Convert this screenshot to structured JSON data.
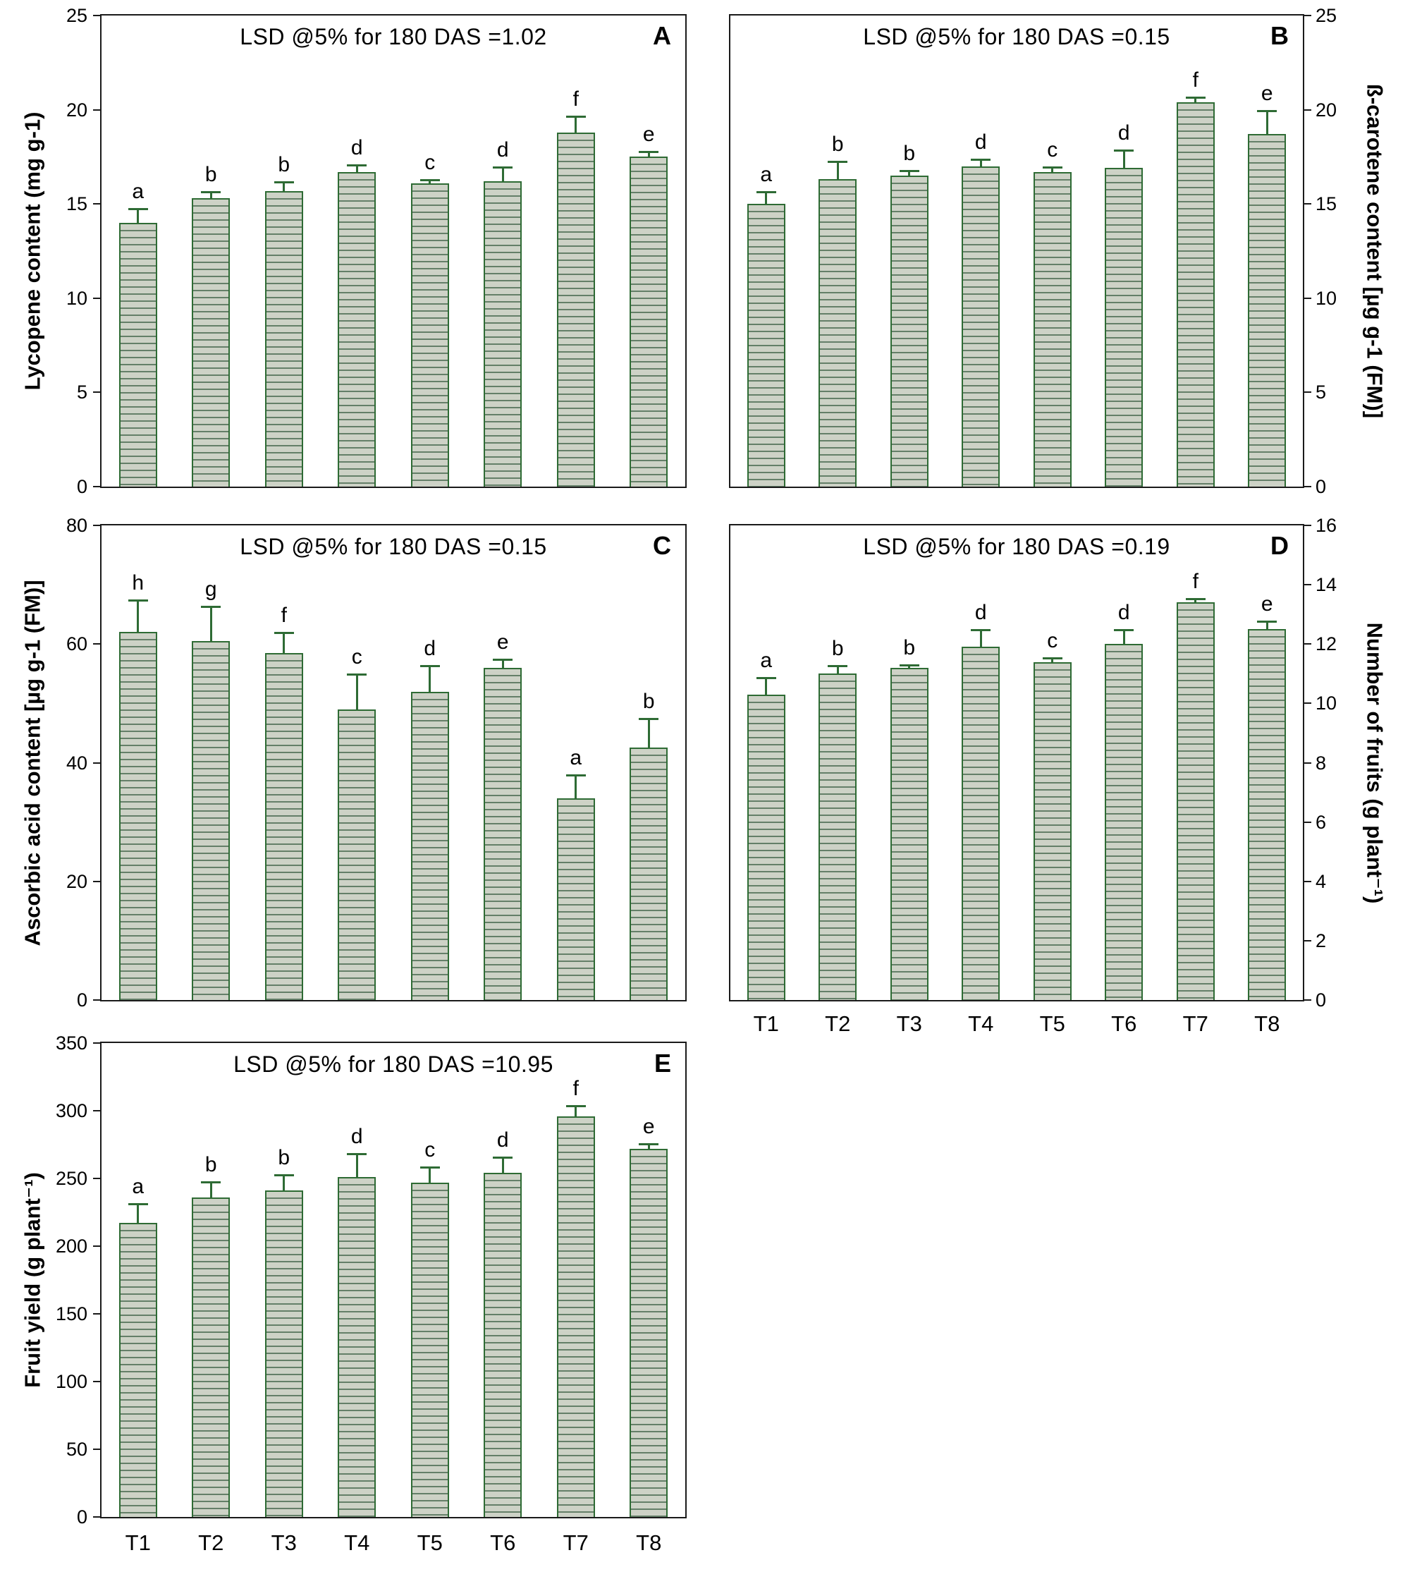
{
  "figure": {
    "background": "#ffffff",
    "axis_color": "#1a1a1a",
    "bar_fill": "#cdd2c6",
    "bar_stripe": "#647f68",
    "bar_border": "#2e6b34",
    "error_color": "#2e6b34",
    "text_color": "#000000"
  },
  "chart_data": [
    {
      "type": "bar",
      "panel": "A",
      "title": "LSD @5% for 180 DAS =1.02",
      "ylabel": "Lycopene content (mg g-1)",
      "xlabel": "",
      "axis_side": "left",
      "ylim": [
        0,
        25
      ],
      "yticks": [
        0,
        5,
        10,
        15,
        20,
        25
      ],
      "grid": false,
      "categories": [
        "T1",
        "T2",
        "T3",
        "T4",
        "T5",
        "T6",
        "T7",
        "T8"
      ],
      "show_x_labels": false,
      "values": [
        14.0,
        15.3,
        15.7,
        16.7,
        16.1,
        16.2,
        18.8,
        17.5
      ],
      "errors": [
        0.8,
        0.4,
        0.5,
        0.4,
        0.2,
        0.8,
        0.9,
        0.3
      ],
      "letters": [
        "a",
        "b",
        "b",
        "d",
        "c",
        "d",
        "f",
        "e"
      ]
    },
    {
      "type": "bar",
      "panel": "B",
      "title": "LSD @5% for 180 DAS =0.15",
      "ylabel": "ß-carotene content [µg g-1 (FM)]",
      "xlabel": "",
      "axis_side": "right",
      "ylim": [
        0,
        25
      ],
      "yticks": [
        0,
        5,
        10,
        15,
        20,
        25
      ],
      "grid": false,
      "categories": [
        "T1",
        "T2",
        "T3",
        "T4",
        "T5",
        "T6",
        "T7",
        "T8"
      ],
      "show_x_labels": false,
      "values": [
        15.0,
        16.3,
        16.5,
        17.0,
        16.7,
        16.9,
        20.4,
        18.7
      ],
      "errors": [
        0.7,
        1.0,
        0.3,
        0.4,
        0.3,
        1.0,
        0.3,
        1.3
      ],
      "letters": [
        "a",
        "b",
        "b",
        "d",
        "c",
        "d",
        "f",
        "e"
      ]
    },
    {
      "type": "bar",
      "panel": "C",
      "title": "LSD @5% for 180 DAS =0.15",
      "ylabel": "Ascorbic acid content [µg g-1 (FM)]",
      "xlabel": "",
      "axis_side": "left",
      "ylim": [
        0,
        80
      ],
      "yticks": [
        0,
        20,
        40,
        60,
        80
      ],
      "grid": false,
      "categories": [
        "T1",
        "T2",
        "T3",
        "T4",
        "T5",
        "T6",
        "T7",
        "T8"
      ],
      "show_x_labels": false,
      "values": [
        62.0,
        60.5,
        58.5,
        49.0,
        52.0,
        56.0,
        34.0,
        42.5
      ],
      "errors": [
        5.5,
        6.0,
        3.5,
        6.0,
        4.5,
        1.5,
        4.0,
        5.0
      ],
      "letters": [
        "h",
        "g",
        "f",
        "c",
        "d",
        "e",
        "a",
        "b"
      ]
    },
    {
      "type": "bar",
      "panel": "D",
      "title": "LSD @5% for 180 DAS =0.19",
      "ylabel": "Number of fruits (g plant⁻¹)",
      "xlabel": "",
      "axis_side": "right",
      "ylim": [
        0,
        16
      ],
      "yticks": [
        0,
        2,
        4,
        6,
        8,
        10,
        12,
        14,
        16
      ],
      "grid": false,
      "categories": [
        "T1",
        "T2",
        "T3",
        "T4",
        "T5",
        "T6",
        "T7",
        "T8"
      ],
      "show_x_labels": true,
      "values": [
        10.3,
        11.0,
        11.2,
        11.9,
        11.4,
        12.0,
        13.4,
        12.5
      ],
      "errors": [
        0.6,
        0.3,
        0.12,
        0.6,
        0.15,
        0.5,
        0.15,
        0.3
      ],
      "letters": [
        "a",
        "b",
        "b",
        "d",
        "c",
        "d",
        "f",
        "e"
      ]
    },
    {
      "type": "bar",
      "panel": "E",
      "title": "LSD @5% for 180 DAS =10.95",
      "ylabel": "Fruit yield (g plant⁻¹)",
      "xlabel": "",
      "axis_side": "left",
      "ylim": [
        0,
        350
      ],
      "yticks": [
        0,
        50,
        100,
        150,
        200,
        250,
        300,
        350
      ],
      "grid": false,
      "categories": [
        "T1",
        "T2",
        "T3",
        "T4",
        "T5",
        "T6",
        "T7",
        "T8"
      ],
      "show_x_labels": true,
      "values": [
        217,
        236,
        241,
        251,
        247,
        254,
        296,
        272
      ],
      "errors": [
        15,
        12,
        12,
        18,
        12,
        12,
        8,
        4
      ],
      "letters": [
        "a",
        "b",
        "b",
        "d",
        "c",
        "d",
        "f",
        "e"
      ]
    }
  ]
}
